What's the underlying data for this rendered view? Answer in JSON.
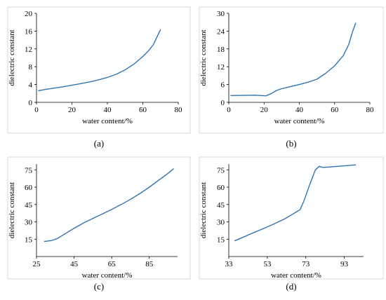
{
  "chart_data": [
    {
      "type": "line",
      "panel_label": "(a)",
      "xlabel": "water content/%",
      "ylabel": "dielectric constant",
      "xlim": [
        0,
        80
      ],
      "ylim": [
        0,
        20
      ],
      "x_ticks": [
        0,
        20,
        40,
        60,
        80
      ],
      "y_ticks": [
        0,
        4,
        8,
        12,
        16,
        20
      ],
      "grid": false,
      "line_color": "#2e75b6",
      "series": [
        {
          "x": [
            1,
            5,
            10,
            15,
            20,
            25,
            30,
            35,
            40,
            45,
            50,
            55,
            60,
            63,
            66,
            68,
            70
          ],
          "y": [
            2.6,
            2.9,
            3.2,
            3.5,
            3.85,
            4.2,
            4.6,
            5.05,
            5.6,
            6.3,
            7.3,
            8.6,
            10.3,
            11.5,
            13.0,
            14.7,
            16.4
          ]
        }
      ]
    },
    {
      "type": "line",
      "panel_label": "(b)",
      "xlabel": "water content/%",
      "ylabel": "dielectric constant",
      "xlim": [
        0,
        80
      ],
      "ylim": [
        0,
        30
      ],
      "x_ticks": [
        0,
        20,
        40,
        60,
        80
      ],
      "y_ticks": [
        0,
        6,
        12,
        18,
        24,
        30
      ],
      "grid": false,
      "line_color": "#2e75b6",
      "series": [
        {
          "x": [
            1,
            8,
            15,
            18,
            21,
            24,
            27,
            30,
            35,
            40,
            45,
            50,
            55,
            60,
            65,
            68,
            70,
            72
          ],
          "y": [
            2.3,
            2.35,
            2.4,
            2.3,
            2.2,
            2.9,
            4.0,
            4.6,
            5.3,
            6.0,
            6.8,
            7.8,
            9.8,
            12.3,
            15.8,
            19.5,
            23.5,
            26.8
          ]
        }
      ]
    },
    {
      "type": "line",
      "panel_label": "(c)",
      "xlabel": "water content/%",
      "ylabel": "dielectric constant",
      "xlim": [
        25,
        100
      ],
      "ylim": [
        0,
        80
      ],
      "x_ticks": [
        25,
        45,
        65,
        85
      ],
      "y_ticks": [
        15,
        30,
        45,
        60,
        75
      ],
      "grid": false,
      "line_color": "#2e75b6",
      "series": [
        {
          "x": [
            29,
            33,
            36,
            40,
            45,
            50,
            55,
            60,
            65,
            70,
            75,
            80,
            85,
            90,
            95,
            98
          ],
          "y": [
            13,
            13.8,
            15.5,
            19.5,
            24.5,
            29,
            33,
            36.8,
            40.8,
            45,
            49.5,
            54.5,
            60,
            66,
            72,
            76
          ]
        }
      ]
    },
    {
      "type": "line",
      "panel_label": "(d)",
      "xlabel": "water content/%",
      "ylabel": "dielectric constant",
      "xlim": [
        33,
        103
      ],
      "ylim": [
        0,
        80
      ],
      "x_ticks": [
        33,
        53,
        73,
        93
      ],
      "y_ticks": [
        15,
        30,
        45,
        60,
        75
      ],
      "grid": false,
      "line_color": "#2e75b6",
      "series": [
        {
          "x": [
            36,
            45,
            55,
            62,
            66,
            68,
            70,
            72,
            75,
            78,
            80,
            82,
            86,
            92,
            99
          ],
          "y": [
            13.5,
            20,
            27,
            32.5,
            36.5,
            38.5,
            40.5,
            48,
            62,
            75,
            78,
            77,
            77.5,
            78.3,
            79.3
          ]
        }
      ]
    }
  ]
}
